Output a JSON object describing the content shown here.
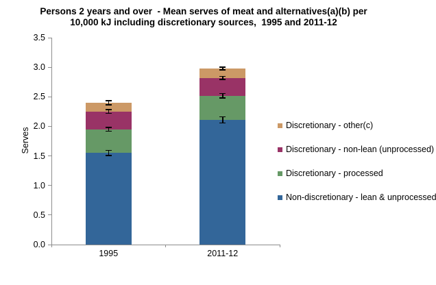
{
  "chart_data": {
    "type": "bar",
    "stacked": true,
    "title": "Persons 2 years and over - Mean serves of meat and alternatives(a)(b) per 10,000 kJ including discretionary sources, 1995 and 2011-12",
    "title_lines": [
      "Persons 2 years and over  - Mean serves of meat and alternatives(a)(b) per",
      "10,000 kJ including discretionary sources,  1995 and 2011-12"
    ],
    "ylabel": "Serves",
    "xlabel": "",
    "ylim": [
      0,
      3.5
    ],
    "ytick_step": 0.5,
    "ytick_labels": [
      "0.0",
      "0.5",
      "1.0",
      "1.5",
      "2.0",
      "2.5",
      "3.0",
      "3.5"
    ],
    "grid": false,
    "legend_position": "right",
    "categories": [
      "1995",
      "2011-12"
    ],
    "series": [
      {
        "name": "Non-discretionary - lean & unprocessed",
        "color": "#336699",
        "values": [
          1.55,
          2.11
        ],
        "error_half": [
          0.04,
          0.05
        ]
      },
      {
        "name": "Discretionary - processed",
        "color": "#669966",
        "values": [
          0.4,
          0.41
        ],
        "error_half": [
          0.03,
          0.035
        ]
      },
      {
        "name": "Discretionary - non-lean (unprocessed)",
        "color": "#993366",
        "values": [
          0.3,
          0.3
        ],
        "error_half": [
          0.03,
          0.025
        ]
      },
      {
        "name": "Discretionary - other(c)",
        "color": "#CC9966",
        "values": [
          0.15,
          0.16
        ],
        "error_half": [
          0.03,
          0.02
        ]
      }
    ],
    "stack_totals": [
      2.4,
      2.98
    ],
    "legend_order": [
      "Discretionary - other(c)",
      "Discretionary - non-lean (unprocessed)",
      "Discretionary - processed",
      "Non-discretionary - lean & unprocessed"
    ],
    "axis_color": "#8C8C8C",
    "error_bar_color": "#000000",
    "text_color": "#000000",
    "background_color": "#FFFFFF"
  }
}
